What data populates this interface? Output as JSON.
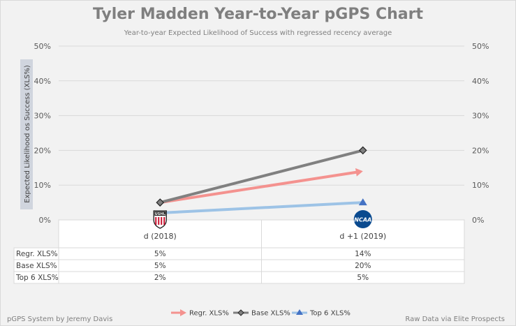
{
  "title": "Tyler Madden Year-to-Year pGPS Chart",
  "subtitle": "Year-to-year Expected Likelihood of Success with regressed recency average",
  "footer_left": "pGPS System by Jeremy Davis",
  "footer_right": "Raw Data via Elite Prospects",
  "chart_data": {
    "type": "line",
    "title": "Tyler Madden Year-to-Year pGPS Chart",
    "ylabel": "Expected Likelihood os Success (XLS%)",
    "ylim": [
      0,
      50
    ],
    "yticks": [
      "0%",
      "10%",
      "20%",
      "30%",
      "40%",
      "50%"
    ],
    "categories": [
      "d (2018)",
      "d +1 (2019)"
    ],
    "category_logos": [
      "USHL",
      "NCAA"
    ],
    "series": [
      {
        "name": "Regr. XLS%",
        "values": [
          5,
          14
        ],
        "labels": [
          "5%",
          "14%"
        ],
        "color": "#f4928f",
        "marker": "arrow"
      },
      {
        "name": "Base XLS%",
        "values": [
          5,
          20
        ],
        "labels": [
          "5%",
          "20%"
        ],
        "color": "#808080",
        "marker": "diamond"
      },
      {
        "name": "Top 6 XLS%",
        "values": [
          2,
          5
        ],
        "labels": [
          "2%",
          "5%"
        ],
        "color": "#9dc3e6",
        "marker": "triangle"
      }
    ]
  }
}
